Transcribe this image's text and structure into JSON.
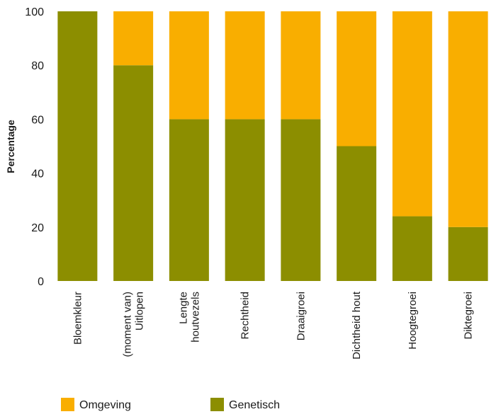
{
  "chart_data": {
    "type": "bar",
    "stacked": true,
    "categories": [
      [
        "Bloemkleur"
      ],
      [
        "(moment van)",
        "Uitlopen"
      ],
      [
        "Lengte",
        "houtvezels"
      ],
      [
        "Rechtheid"
      ],
      [
        "Draaigroei"
      ],
      [
        "Dichtheid hout"
      ],
      [
        "Hoogtegroei"
      ],
      [
        "Diktegroei"
      ]
    ],
    "series": [
      {
        "name": "Genetisch",
        "color": "#8c8e00",
        "values": [
          100,
          80,
          60,
          60,
          60,
          50,
          24,
          20
        ]
      },
      {
        "name": "Omgeving",
        "color": "#f9ae00",
        "values": [
          0,
          20,
          40,
          40,
          40,
          50,
          76,
          80
        ]
      }
    ],
    "ylabel": "Percentage",
    "ylim": [
      0,
      100
    ],
    "yticks": [
      0,
      20,
      40,
      60,
      80,
      100
    ],
    "grid": false,
    "legend": {
      "placement": "bottom-left",
      "order": [
        "Omgeving",
        "Genetisch"
      ]
    }
  }
}
